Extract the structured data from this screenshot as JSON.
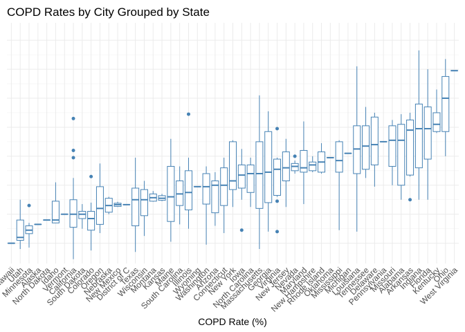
{
  "chart_data": {
    "type": "box",
    "title": "COPD Rates by City Grouped by State",
    "x_label": "COPD Rate (%)",
    "categories": [
      "Hawaii",
      "Utah",
      "Minnesota",
      "Alaska",
      "North Dakota",
      "Idaho",
      "Vermont",
      "California",
      "South Dakota",
      "Colorado",
      "Oregon",
      "Nebraska",
      "New Mexico",
      "District of C",
      "Texas",
      "Wisconsin",
      "Montana",
      "Kansas",
      "Maine",
      "South Carolina",
      "Illinois",
      "Wyoming",
      "Washington",
      "Arizona",
      "Connecticut",
      "New York",
      "Iowa",
      "North Carolina",
      "Massachusetts",
      "Georgia",
      "Virginia",
      "New Jersey",
      "Nevada",
      "Maryland",
      "New Hampshire",
      "Rhode Island",
      "Oklahoma",
      "Mississippi",
      "Michigan",
      "Louisiana",
      "Tennessee",
      "Delaware",
      "Pennsylvania",
      "Missouri",
      "Alabama",
      "Arkansas",
      "Indiana",
      "Florida",
      "Kentucky",
      "Ohio",
      "West Virginia"
    ],
    "min": [
      4.0,
      3.8,
      3.85,
      4.65,
      4.8,
      4.7,
      5.0,
      3.45,
      4.5,
      3.75,
      4.35,
      5.0,
      5.25,
      5.33,
      3.7,
      4.25,
      5.43,
      5.45,
      4.05,
      4.65,
      4.5,
      5.95,
      3.95,
      4.6,
      4.35,
      5.25,
      5.5,
      5.25,
      3.8,
      4.4,
      5.6,
      5.25,
      6.4,
      5.35,
      6.45,
      6.4,
      6.95,
      4.45,
      7.1,
      4.4,
      6.25,
      5.95,
      7.5,
      6.0,
      5.5,
      6.3,
      5.5,
      5.5,
      7.8,
      7.0,
      9.95
    ],
    "q1": [
      4.0,
      4.1,
      4.33,
      4.65,
      4.8,
      4.7,
      5.0,
      4.55,
      4.85,
      4.45,
      4.65,
      5.07,
      5.27,
      5.33,
      4.6,
      4.95,
      5.45,
      5.48,
      4.75,
      5.3,
      5.15,
      5.95,
      5.35,
      5.05,
      5.3,
      5.85,
      5.9,
      5.75,
      5.2,
      5.4,
      5.65,
      6.15,
      6.5,
      6.45,
      6.5,
      6.45,
      6.95,
      6.45,
      7.1,
      6.4,
      6.55,
      6.7,
      7.5,
      6.65,
      6.0,
      6.35,
      6.6,
      6.9,
      7.85,
      7.85,
      9.95
    ],
    "median": [
      4.0,
      4.2,
      4.45,
      4.65,
      4.8,
      4.8,
      5.0,
      5.0,
      5.0,
      4.85,
      5.2,
      5.3,
      5.33,
      5.33,
      5.5,
      5.5,
      5.57,
      5.55,
      5.6,
      5.7,
      5.75,
      5.95,
      5.95,
      6.0,
      6.0,
      6.15,
      6.35,
      6.4,
      6.4,
      6.45,
      6.55,
      6.6,
      6.65,
      6.6,
      6.7,
      6.8,
      6.95,
      6.85,
      7.1,
      7.25,
      7.35,
      7.4,
      7.5,
      7.55,
      7.55,
      7.9,
      7.95,
      7.95,
      8.1,
      9.0,
      9.95
    ],
    "q3": [
      4.0,
      4.8,
      4.6,
      4.65,
      4.8,
      5.45,
      5.0,
      5.5,
      5.1,
      5.1,
      5.95,
      5.55,
      5.38,
      5.33,
      5.9,
      5.85,
      5.7,
      5.64,
      6.65,
      6.15,
      6.5,
      5.95,
      6.4,
      6.15,
      6.6,
      7.5,
      6.7,
      6.7,
      7.5,
      7.85,
      6.9,
      7.15,
      6.75,
      7.2,
      6.8,
      7.15,
      6.95,
      7.5,
      7.1,
      8.05,
      8.05,
      8.35,
      7.5,
      8.05,
      8.1,
      8.25,
      8.8,
      8.7,
      8.5,
      9.75,
      9.95
    ],
    "max": [
      4.0,
      5.5,
      4.7,
      4.65,
      4.8,
      6.1,
      5.0,
      6.25,
      5.35,
      5.4,
      6.75,
      5.6,
      5.43,
      5.33,
      6.95,
      6.15,
      5.8,
      5.7,
      7.6,
      6.65,
      6.95,
      5.95,
      6.65,
      6.45,
      6.95,
      7.55,
      7.25,
      6.95,
      9.1,
      8.55,
      6.95,
      7.6,
      6.85,
      8.2,
      7.0,
      7.45,
      6.95,
      7.55,
      7.1,
      10.1,
      8.7,
      8.5,
      7.5,
      8.25,
      8.45,
      8.5,
      10.65,
      10.0,
      9.3,
      10.35,
      9.95
    ],
    "outliers": [
      [],
      [],
      [
        5.3
      ],
      [],
      [],
      [],
      [],
      [
        8.3,
        7.2,
        6.95
      ],
      [],
      [
        6.3
      ],
      [],
      [],
      [],
      [],
      [],
      [],
      [],
      [],
      [],
      [],
      [
        8.45
      ],
      [],
      [],
      [],
      [],
      [],
      [
        4.45
      ],
      [],
      [],
      [],
      [
        7.95,
        5.45,
        4.4
      ],
      [],
      [
        7.0
      ],
      [],
      [],
      [],
      [],
      [],
      [],
      [],
      [],
      [],
      [],
      [],
      [],
      [
        5.5
      ],
      [],
      [],
      [],
      [],
      []
    ],
    "color": "#4682b4",
    "ylim": [
      3.3,
      11.6
    ],
    "yticks": [
      4,
      5,
      6,
      7,
      8,
      9,
      10,
      11
    ],
    "grid": true
  }
}
